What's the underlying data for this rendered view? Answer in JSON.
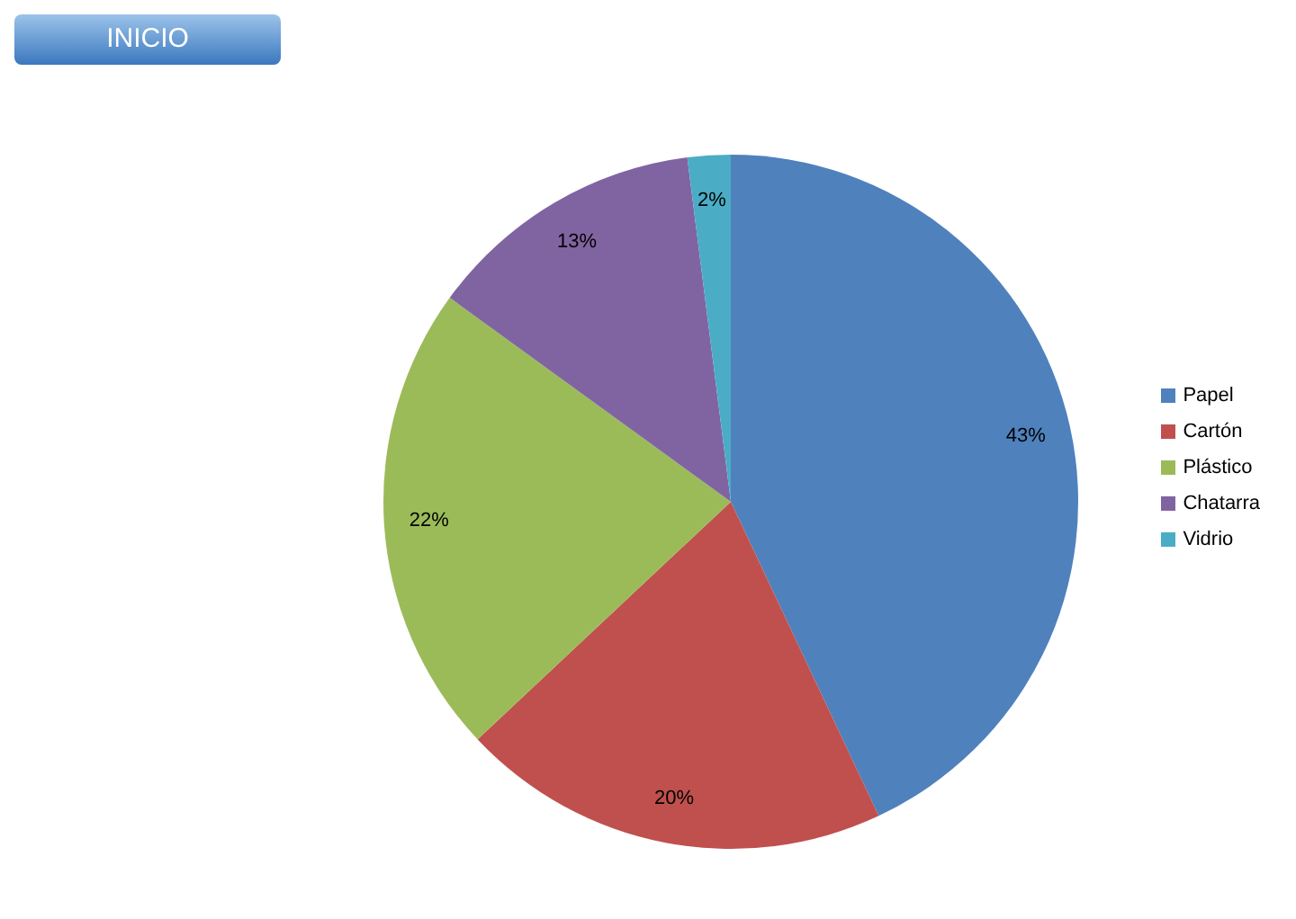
{
  "chart_data": {
    "type": "pie",
    "categories": [
      "Papel",
      "Cartón",
      "Plástico",
      "Chatarra",
      "Vidrio"
    ],
    "values": [
      43,
      20,
      22,
      13,
      2
    ],
    "colors": [
      "#4f81bd",
      "#c0504d",
      "#9bbb59",
      "#8064a2",
      "#4bacc6"
    ],
    "value_labels": [
      "43%",
      "20%",
      "22%",
      "13%",
      "2%"
    ],
    "legend": "right",
    "annotations": [
      "INICIO"
    ]
  }
}
